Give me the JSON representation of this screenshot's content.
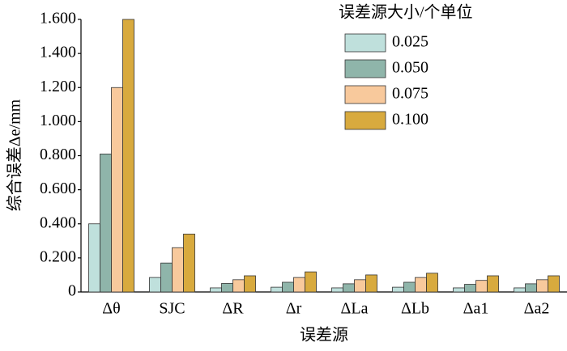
{
  "chart_data": {
    "type": "bar",
    "categories": [
      "Δθ",
      "SJC",
      "ΔR",
      "Δr",
      "ΔLa",
      "ΔLb",
      "Δa1",
      "Δa2"
    ],
    "series": [
      {
        "name": "0.025",
        "color": "#bfe0dc",
        "values": [
          0.4,
          0.085,
          0.024,
          0.028,
          0.024,
          0.028,
          0.024,
          0.024
        ]
      },
      {
        "name": "0.050",
        "color": "#8fb5aa",
        "values": [
          0.81,
          0.17,
          0.05,
          0.057,
          0.048,
          0.057,
          0.045,
          0.048
        ]
      },
      {
        "name": "0.075",
        "color": "#f8c99c",
        "values": [
          1.2,
          0.26,
          0.072,
          0.085,
          0.072,
          0.085,
          0.068,
          0.072
        ]
      },
      {
        "name": "0.100",
        "color": "#d8aa3e",
        "values": [
          1.6,
          0.34,
          0.095,
          0.118,
          0.1,
          0.11,
          0.095,
          0.095
        ]
      }
    ],
    "ylim": [
      0,
      1.6
    ],
    "yticks": [
      0,
      {
        "value": 0.2,
        "label": "0.200"
      },
      {
        "value": 0.4,
        "label": "0.400"
      },
      {
        "value": 0.6,
        "label": "0.600"
      },
      {
        "value": 0.8,
        "label": "0.800"
      },
      {
        "value": 1.0,
        "label": "1.000"
      },
      {
        "value": 1.2,
        "label": "1.200"
      },
      {
        "value": 1.4,
        "label": "1.400"
      },
      {
        "value": 1.6,
        "label": "1.600"
      }
    ],
    "xlabel": "误差源",
    "ylabel": "综合误差Δe/mm",
    "legend_title": "误差源大小/个单位",
    "legend": "upper right"
  }
}
